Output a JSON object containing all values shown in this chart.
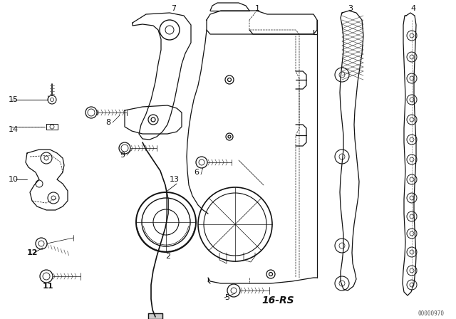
{
  "bg_color": "#ffffff",
  "bottom_label": "16-RS",
  "code": "00000970",
  "lc": "#111111"
}
